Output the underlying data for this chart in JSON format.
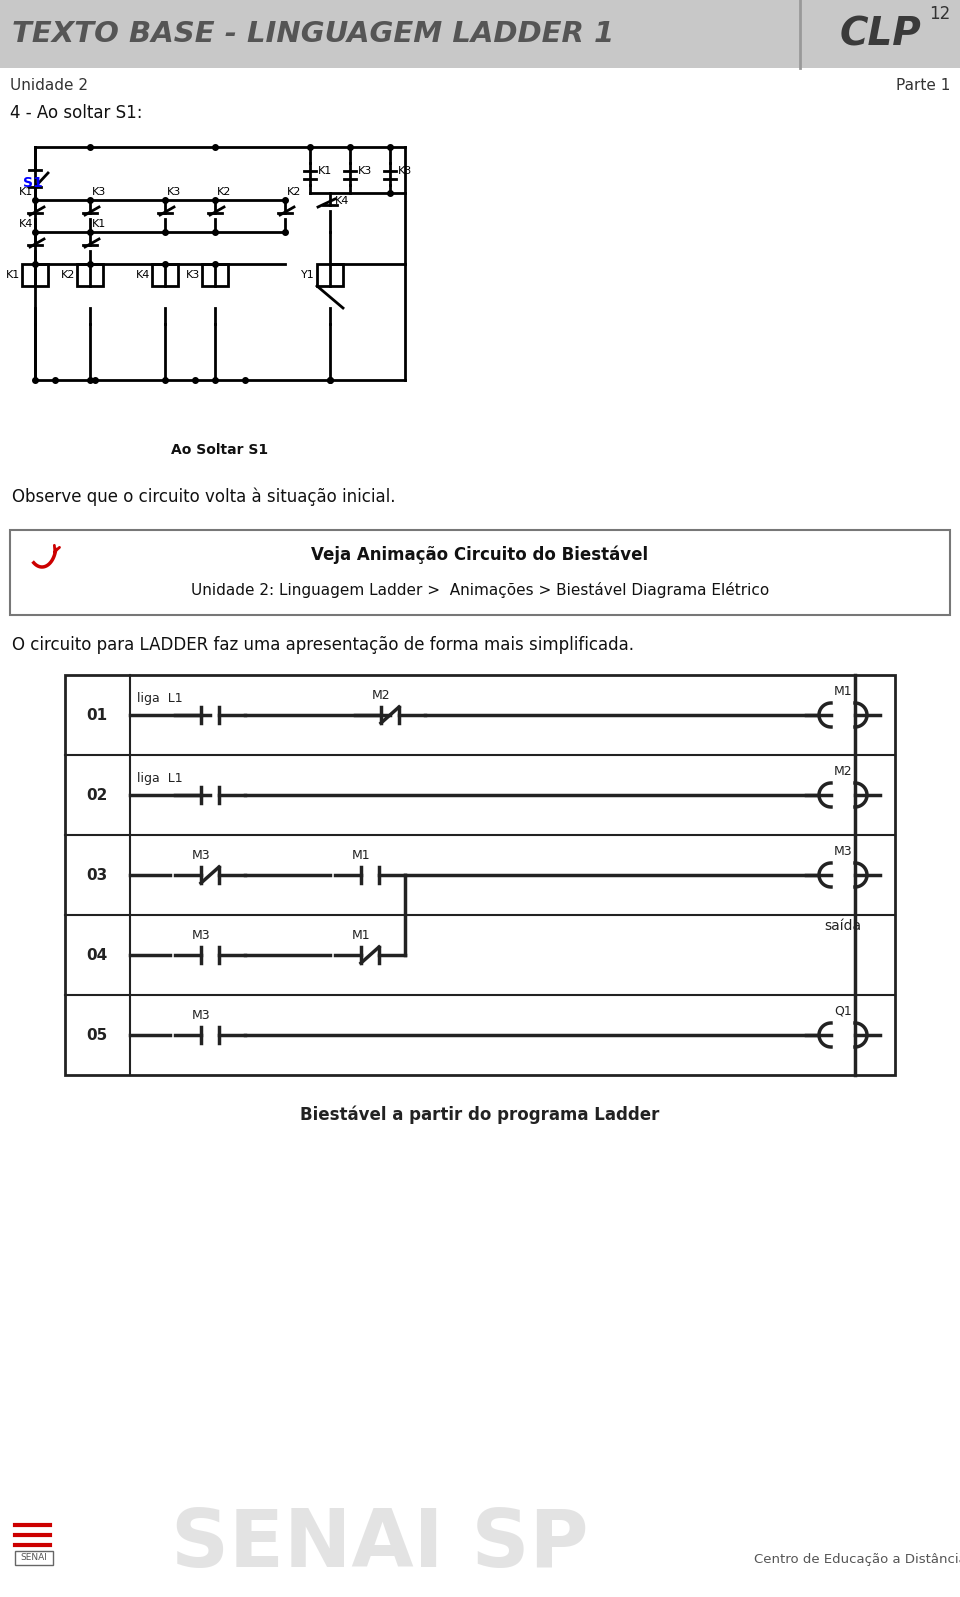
{
  "title_text": "TEXTO BASE - LINGUAGEM LADDER 1",
  "title_clp": "CLP",
  "page_num": "12",
  "subtitle_left": "Unidade 2",
  "subtitle_right": "Parte 1",
  "header_bg": "#c8c8c8",
  "header_text_color": "#555555",
  "section_title": "4 - Ao soltar S1:",
  "circuit_caption": "Ao Soltar S1",
  "observe_text": "Observe que o circuito volta à situação inicial.",
  "box_title": "Veja Animação Circuito do Biestável",
  "box_subtitle": "Unidade 2: Linguagem Ladder >  Animações > Biestável Diagrama Elétrico",
  "ladder_intro": "O circuito para LADDER faz uma apresentação de forma mais simplificada.",
  "ladder_caption": "Biestável a partir do programa Ladder",
  "footer_senai": "SENAI",
  "footer_right": "Centro de Educação a Distância",
  "bg_color": "#ffffff"
}
